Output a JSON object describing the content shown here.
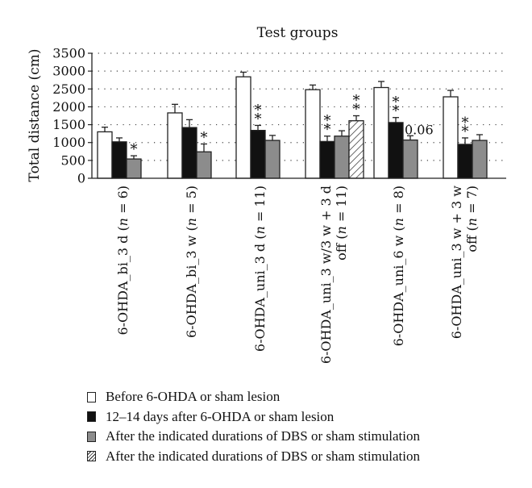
{
  "chart_data": {
    "type": "bar",
    "title": "Test groups",
    "ylabel": "Total distance (cm)",
    "xlabel": "",
    "ylim": [
      0,
      3500
    ],
    "yticks": [
      0,
      500,
      1000,
      1500,
      2000,
      2500,
      3000,
      3500
    ],
    "grid": "horizontal dotted",
    "categories": [
      [
        "6-OHDA_bi_3 d (",
        "n",
        " = 6)"
      ],
      [
        "6-OHDA_bi_3 w (",
        "n",
        " = 5)"
      ],
      [
        "6-OHDA_uni_3 d (",
        "n",
        " = 11)"
      ],
      [
        "6-OHDA_uni_3 w/3 w + 3 d",
        "off (",
        "n",
        " = 11)"
      ],
      [
        "6-OHDA_uni_6 w (",
        "n",
        " = 8)"
      ],
      [
        "6-OHDA_uni_3 w + 3 w",
        "off (",
        "n",
        " = 7)"
      ]
    ],
    "series": [
      {
        "name": "Before 6-OHDA or sham lesion",
        "fill": "#ffffff",
        "pattern": "none",
        "values": [
          1300,
          1830,
          2840,
          2480,
          2540,
          2280
        ],
        "errors": [
          130,
          240,
          130,
          130,
          170,
          180
        ]
      },
      {
        "name": "12–14 days after 6-OHDA or sham lesion",
        "fill": "#111111",
        "pattern": "none",
        "values": [
          1020,
          1420,
          1340,
          1030,
          1560,
          950
        ],
        "errors": [
          110,
          220,
          140,
          150,
          140,
          180
        ]
      },
      {
        "name": "After the indicated durations of DBS or sham stimulation",
        "fill": "#8c8c8c",
        "pattern": "none",
        "values": [
          540,
          740,
          1060,
          1180,
          1070,
          1060
        ],
        "errors": [
          90,
          220,
          140,
          150,
          120,
          160
        ]
      },
      {
        "name": "After the indicated durations of DBS or sham stimulation",
        "fill": "#ffffff",
        "pattern": "hatch",
        "values": [
          null,
          null,
          null,
          1610,
          null,
          null
        ],
        "errors": [
          null,
          null,
          null,
          140,
          null,
          null
        ]
      }
    ],
    "annotations": [
      {
        "group": 0,
        "series": 2,
        "text": "*"
      },
      {
        "group": 1,
        "series": 2,
        "text": "*"
      },
      {
        "group": 2,
        "series": 1,
        "text": "**"
      },
      {
        "group": 3,
        "series": 1,
        "text": "**"
      },
      {
        "group": 3,
        "series": 3,
        "text": "**"
      },
      {
        "group": 4,
        "series": 1,
        "text": "**"
      },
      {
        "group": 4,
        "series": 2,
        "text": "0.06"
      },
      {
        "group": 5,
        "series": 1,
        "text": "**"
      }
    ]
  }
}
